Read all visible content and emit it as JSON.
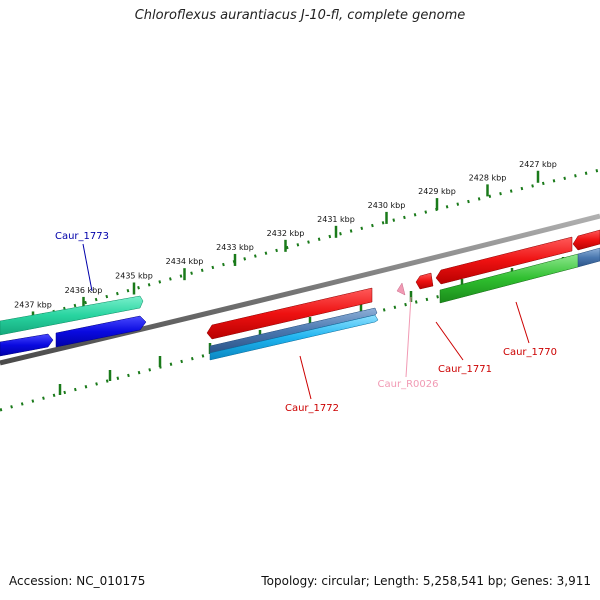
{
  "title": "Chloroflexus aurantiacus J-10-fl, complete genome",
  "footer": {
    "accession": "Accession: NC_010175",
    "summary": "Topology: circular; Length: 5,258,541 bp; Genes: 3,911"
  },
  "ruler": {
    "ticks": [
      {
        "label": "2427 kbp",
        "kbp": 2427
      },
      {
        "label": "2428 kbp",
        "kbp": 2428
      },
      {
        "label": "2429 kbp",
        "kbp": 2429
      },
      {
        "label": "2430 kbp",
        "kbp": 2430
      },
      {
        "label": "2431 kbp",
        "kbp": 2431
      },
      {
        "label": "2432 kbp",
        "kbp": 2432
      },
      {
        "label": "2433 kbp",
        "kbp": 2433
      },
      {
        "label": "2434 kbp",
        "kbp": 2434
      },
      {
        "label": "2435 kbp",
        "kbp": 2435
      },
      {
        "label": "2436 kbp",
        "kbp": 2436
      },
      {
        "label": "2437 kbp",
        "kbp": 2437
      }
    ]
  },
  "features": {
    "labels": [
      {
        "id": "caur-1773",
        "text": "Caur_1773",
        "color": "#0000aa"
      },
      {
        "id": "caur-1772",
        "text": "Caur_1772",
        "color": "#cc0000"
      },
      {
        "id": "caur-r0026",
        "text": "Caur_R0026",
        "color": "#f19ab4"
      },
      {
        "id": "caur-1771",
        "text": "Caur_1771",
        "color": "#cc0000"
      },
      {
        "id": "caur-1770",
        "text": "Caur_1770",
        "color": "#cc0000"
      }
    ]
  },
  "colors": {
    "backbone": "#777777",
    "ruler": "#1a7a1a",
    "cds_forward": "#ee1111",
    "cds_reverse_blue": "#0a0ae0",
    "teal": "#28d4a0",
    "sky": "#1fb4f0",
    "steel": "#4a78b0",
    "green": "#2fbf2f",
    "trna": "#f19ab4"
  }
}
